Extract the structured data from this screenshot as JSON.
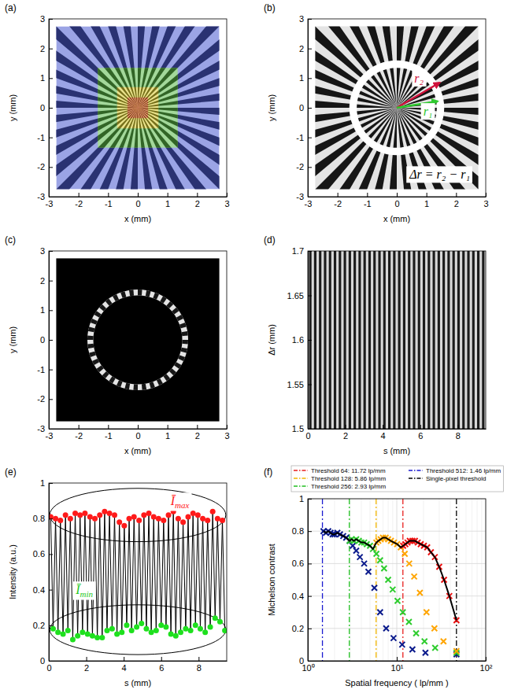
{
  "chart_data": [
    {
      "type": "image",
      "panel": "(a)",
      "xlabel": "x (mm)",
      "ylabel": "y (mm)",
      "xlim": [
        -3,
        3
      ],
      "ylim": [
        -3,
        3
      ],
      "xticks": [
        -3,
        -2,
        -1,
        0,
        1,
        2,
        3
      ],
      "yticks": [
        -3,
        -2,
        -1,
        0,
        1,
        2,
        3
      ],
      "spokes": 36,
      "regions": [
        {
          "half_width": 2.75,
          "color": "#4a5ad0"
        },
        {
          "half_width": 1.35,
          "color": "#58b848"
        },
        {
          "half_width": 0.7,
          "color": "#d8cc30"
        },
        {
          "half_width": 0.35,
          "color": "#e0601c"
        }
      ]
    },
    {
      "type": "image",
      "panel": "(b)",
      "xlabel": "x (mm)",
      "ylabel": "y (mm)",
      "xlim": [
        -3,
        3
      ],
      "ylim": [
        -3,
        3
      ],
      "xticks": [
        -3,
        -2,
        -1,
        0,
        1,
        2,
        3
      ],
      "yticks": [
        -3,
        -2,
        -1,
        0,
        1,
        2,
        3
      ],
      "spokes": 36,
      "half_width": 2.75,
      "ring": {
        "inner": 1.35,
        "outer": 1.6
      },
      "arrows": [
        {
          "x": 1.45,
          "y": 0.85,
          "color": "#d0103a"
        },
        {
          "x": 1.38,
          "y": 0.22,
          "color": "#2ec82e"
        }
      ],
      "annotations": [
        {
          "text": "r₂",
          "x": 0.75,
          "y": 1.0,
          "color": "#d0103a"
        },
        {
          "text": "r₁",
          "x": 1.05,
          "y": -0.12,
          "color": "#2ec82e"
        },
        {
          "text": "Δr = r₂ − r₁",
          "x": 1.45,
          "y": -2.25,
          "color": "#000000"
        }
      ]
    },
    {
      "type": "image",
      "panel": "(c)",
      "xlabel": "x (mm)",
      "ylabel": "y (mm)",
      "xlim": [
        -3,
        3
      ],
      "ylim": [
        -3,
        3
      ],
      "xticks": [
        -3,
        -2,
        -1,
        0,
        1,
        2,
        3
      ],
      "yticks": [
        -3,
        -2,
        -1,
        0,
        1,
        2,
        3
      ],
      "spokes": 36,
      "half_width": 2.75,
      "ring": {
        "inner": 1.5,
        "outer": 1.7
      }
    },
    {
      "type": "image",
      "panel": "(d)",
      "xlabel": "s (mm)",
      "ylabel": "Δr (mm)",
      "xlim": [
        0,
        9.5
      ],
      "ylim": [
        1.5,
        1.7
      ],
      "xticks": [
        0,
        2,
        4,
        6,
        8
      ],
      "yticks": [
        1.5,
        1.55,
        1.6,
        1.65,
        1.7
      ],
      "spokes": 36
    },
    {
      "type": "line",
      "panel": "(e)",
      "xlabel": "s (mm)",
      "ylabel": "Intensity (a.u.)",
      "xlim": [
        0,
        9.5
      ],
      "ylim": [
        0,
        1
      ],
      "xticks": [
        0,
        2,
        4,
        6,
        8
      ],
      "yticks": [
        0,
        0.2,
        0.4,
        0.6,
        0.8,
        1
      ],
      "series": [
        {
          "type": "line",
          "color": "#000000",
          "x": [
            0.1,
            0.23,
            0.36,
            0.49,
            0.62,
            0.76,
            0.89,
            1.02,
            1.15,
            1.28,
            1.41,
            1.54,
            1.67,
            1.8,
            1.93,
            2.07,
            2.2,
            2.33,
            2.46,
            2.59,
            2.72,
            2.85,
            2.98,
            3.11,
            3.24,
            3.38,
            3.51,
            3.64,
            3.77,
            3.9,
            4.03,
            4.16,
            4.29,
            4.42,
            4.55,
            4.69,
            4.82,
            4.95,
            5.08,
            5.21,
            5.34,
            5.47,
            5.6,
            5.73,
            5.86,
            6.0,
            6.13,
            6.26,
            6.39,
            6.52,
            6.65,
            6.78,
            6.91,
            7.04,
            7.17,
            7.31,
            7.44,
            7.57,
            7.7,
            7.83,
            7.96,
            8.09,
            8.22,
            8.35,
            8.48,
            8.62,
            8.75,
            8.88,
            9.01,
            9.14,
            9.27,
            9.4
          ],
          "values": [
            0.81,
            0.18,
            0.8,
            0.16,
            0.79,
            0.15,
            0.82,
            0.17,
            0.8,
            0.12,
            0.83,
            0.14,
            0.82,
            0.16,
            0.83,
            0.15,
            0.81,
            0.14,
            0.8,
            0.13,
            0.82,
            0.13,
            0.84,
            0.17,
            0.83,
            0.18,
            0.82,
            0.15,
            0.78,
            0.16,
            0.76,
            0.2,
            0.8,
            0.17,
            0.81,
            0.19,
            0.79,
            0.21,
            0.82,
            0.18,
            0.83,
            0.16,
            0.81,
            0.17,
            0.8,
            0.2,
            0.79,
            0.19,
            0.82,
            0.15,
            0.84,
            0.14,
            0.8,
            0.16,
            0.78,
            0.18,
            0.81,
            0.17,
            0.83,
            0.2,
            0.82,
            0.18,
            0.8,
            0.16,
            0.79,
            0.19,
            0.84,
            0.24,
            0.8,
            0.22,
            0.79,
            0.17
          ]
        },
        {
          "type": "scatter",
          "color": "#ff1a1a",
          "marker": "circle",
          "x": [
            0.1,
            0.36,
            0.62,
            0.89,
            1.15,
            1.41,
            1.67,
            1.93,
            2.2,
            2.46,
            2.72,
            2.98,
            3.24,
            3.51,
            3.77,
            4.03,
            4.29,
            4.55,
            4.82,
            5.08,
            5.34,
            5.6,
            5.86,
            6.13,
            6.39,
            6.65,
            6.91,
            7.17,
            7.44,
            7.7,
            7.96,
            8.22,
            8.48,
            8.75,
            9.01,
            9.27
          ],
          "values": [
            0.81,
            0.8,
            0.79,
            0.82,
            0.8,
            0.83,
            0.82,
            0.83,
            0.81,
            0.8,
            0.82,
            0.84,
            0.83,
            0.82,
            0.78,
            0.76,
            0.8,
            0.81,
            0.79,
            0.82,
            0.83,
            0.81,
            0.8,
            0.79,
            0.82,
            0.84,
            0.8,
            0.78,
            0.81,
            0.83,
            0.82,
            0.8,
            0.79,
            0.84,
            0.8,
            0.79
          ]
        },
        {
          "type": "scatter",
          "color": "#1ee01e",
          "marker": "circle",
          "x": [
            0.23,
            0.49,
            0.76,
            1.02,
            1.28,
            1.54,
            1.8,
            2.07,
            2.33,
            2.59,
            2.85,
            3.11,
            3.38,
            3.64,
            3.9,
            4.16,
            4.42,
            4.69,
            4.95,
            5.21,
            5.47,
            5.73,
            6.0,
            6.26,
            6.52,
            6.78,
            7.04,
            7.31,
            7.57,
            7.83,
            8.09,
            8.35,
            8.62,
            8.88,
            9.14,
            9.4
          ],
          "values": [
            0.18,
            0.16,
            0.15,
            0.17,
            0.12,
            0.14,
            0.16,
            0.15,
            0.14,
            0.13,
            0.13,
            0.17,
            0.18,
            0.15,
            0.16,
            0.2,
            0.17,
            0.19,
            0.21,
            0.18,
            0.16,
            0.17,
            0.2,
            0.19,
            0.15,
            0.14,
            0.16,
            0.18,
            0.17,
            0.2,
            0.18,
            0.16,
            0.19,
            0.24,
            0.22,
            0.17
          ]
        }
      ],
      "ellipses": [
        {
          "cx": 4.75,
          "cy": 0.82,
          "rx": 4.7,
          "ry": 0.15
        },
        {
          "cx": 4.75,
          "cy": 0.175,
          "rx": 4.7,
          "ry": 0.14
        }
      ],
      "annotations": [
        {
          "text": "Ī",
          "subscript": "max",
          "x": 7.0,
          "y": 0.9,
          "color": "#ff1a1a"
        },
        {
          "text": "Ī",
          "subscript": "min",
          "x": 1.9,
          "y": 0.4,
          "color": "#1ec81e"
        }
      ]
    },
    {
      "type": "scatter",
      "panel": "(f)",
      "xlabel": "Spatial frequency ( lp/mm )",
      "ylabel": "Michelson contrast",
      "log": "x",
      "grid": true,
      "legend": "top",
      "xlim": [
        1,
        100
      ],
      "ylim": [
        0,
        1
      ],
      "xticks": [
        {
          "value": 1,
          "label": "10⁰"
        },
        {
          "value": 10,
          "label": "10¹"
        },
        {
          "value": 100,
          "label": "10²"
        }
      ],
      "xminor": [
        2,
        3,
        4,
        5,
        6,
        7,
        8,
        9,
        20,
        30,
        40,
        50,
        60,
        70,
        80,
        90
      ],
      "yticks": [
        0,
        0.2,
        0.4,
        0.6,
        0.8,
        1
      ],
      "thresholds": [
        {
          "name": "Threshold 64: 11.72 lp/mm",
          "value": 11.72,
          "color": "#e8201e",
          "line_style": "dashdot"
        },
        {
          "name": "Threshold 128: 5.86 lp/mm",
          "value": 5.86,
          "color": "#f2b600",
          "line_style": "dashdot"
        },
        {
          "name": "Threshold 256: 2.93 lp/mm",
          "value": 2.93,
          "color": "#20c020",
          "line_style": "dashdot"
        },
        {
          "name": "Threshold 512: 1.46 lp/mm",
          "value": 1.46,
          "color": "#1a1ad0",
          "line_style": "dashdot"
        },
        {
          "name": "Single-pixel threshold",
          "value": 46.88,
          "color": "#000000",
          "line_style": "dashdot"
        }
      ],
      "series": [
        {
          "type": "scatter",
          "marker": "x",
          "color": "#0a1a8c",
          "x": [
            1.5,
            1.6,
            1.7,
            1.8,
            1.9,
            2.0,
            2.15,
            2.3,
            2.5,
            2.7,
            2.95,
            3.2,
            3.5,
            3.85,
            4.3,
            4.8,
            5.6,
            6.5,
            7.6,
            9.2,
            11.5,
            15,
            21,
            46.9
          ],
          "values": [
            0.8,
            0.79,
            0.8,
            0.79,
            0.78,
            0.78,
            0.79,
            0.78,
            0.77,
            0.76,
            0.74,
            0.71,
            0.68,
            0.64,
            0.6,
            0.55,
            0.45,
            0.3,
            0.2,
            0.14,
            0.1,
            0.07,
            0.05,
            0.04
          ]
        },
        {
          "type": "scatter",
          "marker": "x",
          "color": "#2ecc2e",
          "x": [
            2.95,
            3.1,
            3.3,
            3.5,
            3.75,
            4.0,
            4.3,
            4.6,
            5.0,
            5.4,
            5.9,
            6.5,
            7.2,
            8.0,
            9.0,
            10.2,
            11.7,
            13.7,
            16.5,
            20.5,
            27,
            46.9
          ],
          "values": [
            0.74,
            0.75,
            0.74,
            0.75,
            0.74,
            0.73,
            0.73,
            0.72,
            0.71,
            0.69,
            0.66,
            0.62,
            0.57,
            0.5,
            0.44,
            0.37,
            0.3,
            0.24,
            0.17,
            0.12,
            0.08,
            0.05
          ]
        },
        {
          "type": "scatter",
          "marker": "x",
          "color": "#ffa500",
          "x": [
            5.9,
            6.2,
            6.6,
            7.0,
            7.5,
            8.0,
            8.6,
            9.3,
            10.1,
            11.1,
            12.3,
            13.8,
            15.7,
            18.2,
            21.6,
            26.5,
            33.5,
            46.9
          ],
          "values": [
            0.73,
            0.74,
            0.75,
            0.76,
            0.76,
            0.75,
            0.74,
            0.73,
            0.72,
            0.7,
            0.66,
            0.6,
            0.52,
            0.42,
            0.3,
            0.2,
            0.12,
            0.06
          ]
        },
        {
          "type": "scatter",
          "marker": "x",
          "color": "#ee1010",
          "x": [
            11.8,
            12.5,
            13.2,
            14.0,
            15.0,
            16.0,
            17.2,
            18.6,
            20.2,
            22.0,
            24.2,
            26.8,
            30.0,
            34.0,
            39.0,
            46.9
          ],
          "values": [
            0.71,
            0.72,
            0.73,
            0.74,
            0.74,
            0.74,
            0.73,
            0.72,
            0.71,
            0.7,
            0.67,
            0.64,
            0.58,
            0.5,
            0.4,
            0.25
          ]
        },
        {
          "type": "line",
          "color": "#000000",
          "x": [
            1.5,
            1.6,
            1.7,
            1.8,
            1.9,
            2.0,
            2.15,
            2.3,
            2.5,
            2.7,
            2.95,
            3.1,
            3.3,
            3.5,
            3.75,
            4.0,
            4.3,
            4.6,
            5.0,
            5.4,
            5.9,
            6.2,
            6.6,
            7.0,
            7.5,
            8.0,
            8.6,
            9.3,
            10.1,
            11.1,
            11.8,
            12.5,
            13.2,
            14.0,
            15.0,
            16.0,
            17.2,
            18.6,
            20.2,
            22.0,
            24.2,
            26.8,
            30.0,
            34.0,
            39.0,
            46.9
          ],
          "values": [
            0.8,
            0.79,
            0.8,
            0.79,
            0.78,
            0.78,
            0.79,
            0.78,
            0.77,
            0.76,
            0.74,
            0.75,
            0.74,
            0.75,
            0.74,
            0.73,
            0.73,
            0.72,
            0.71,
            0.69,
            0.73,
            0.74,
            0.75,
            0.76,
            0.76,
            0.75,
            0.74,
            0.73,
            0.72,
            0.7,
            0.71,
            0.72,
            0.73,
            0.74,
            0.74,
            0.74,
            0.73,
            0.72,
            0.71,
            0.7,
            0.67,
            0.64,
            0.58,
            0.5,
            0.4,
            0.25
          ]
        }
      ]
    }
  ]
}
